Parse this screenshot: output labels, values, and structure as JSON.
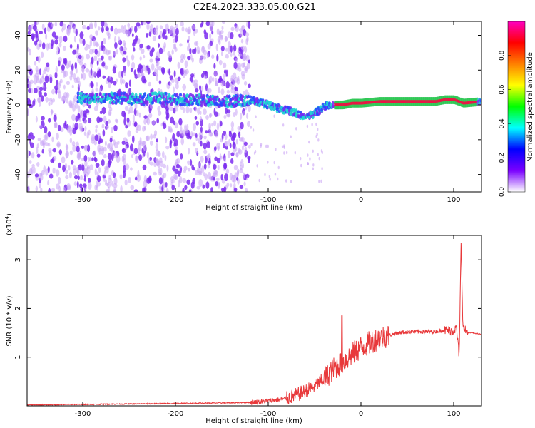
{
  "figure_title": "C2E4.2023.333.05.00.G21",
  "colors": {
    "snr_line": "#e8393b",
    "spectro_low": "#7b2cf0",
    "spectro_mid": "#22d3d3",
    "spectro_high": "#ee1144",
    "colorbar_stops": [
      "#ffffff",
      "#7a00ff",
      "#0000ff",
      "#00ffff",
      "#00ff00",
      "#ffff00",
      "#ff8000",
      "#ff0000",
      "#ff00c0"
    ]
  },
  "chart_data": [
    {
      "type": "heatmap",
      "xlabel": "Height of straight line (km)",
      "ylabel": "Frequency (Hz)",
      "xlim": [
        -360,
        130
      ],
      "ylim": [
        -50,
        48
      ],
      "xticks": [
        -300,
        -200,
        -100,
        0,
        100
      ],
      "yticks": [
        40,
        20,
        0,
        -20,
        -40
      ],
      "colorbar": {
        "label": "Normalized spectral amplitude",
        "range": [
          0.0,
          1.0
        ],
        "ticks": [
          "0.0",
          "0.2",
          "0.4",
          "0.6",
          "0.8"
        ]
      },
      "ridge": {
        "x": [
          -300,
          -280,
          -260,
          -240,
          -220,
          -200,
          -180,
          -160,
          -140,
          -120,
          -100,
          -90,
          -80,
          -70,
          -60,
          -55,
          -50,
          -45,
          -40,
          -30,
          -20,
          -10,
          0,
          20,
          40,
          60,
          80,
          90,
          100,
          110,
          130
        ],
        "freq": [
          4,
          4,
          4,
          3,
          4,
          3,
          3,
          2,
          2,
          3,
          0,
          -2,
          -3,
          -5,
          -7,
          -6,
          -5,
          -3,
          -1,
          0,
          0,
          1,
          1,
          2,
          2,
          2,
          2,
          3,
          3,
          1,
          2
        ]
      }
    },
    {
      "type": "line",
      "xlabel": "Height of straight line (km)",
      "ylabel": "SNR (10 * v/v)",
      "multiplier": "(x10",
      "multiplier_exp": "4",
      "xlim": [
        -360,
        130
      ],
      "ylim": [
        0,
        3.5
      ],
      "xticks": [
        -300,
        -200,
        -100,
        0,
        100
      ],
      "yticks": [
        1,
        2,
        3
      ],
      "series": [
        {
          "x": [
            -360,
            -300,
            -250,
            -200,
            -150,
            -120,
            -100,
            -80,
            -60,
            -50,
            -40,
            -30,
            -20,
            -10,
            0,
            10,
            20,
            30,
            40,
            50,
            60,
            70,
            80,
            90,
            100,
            103,
            106,
            108,
            110,
            115,
            120,
            130
          ],
          "y": [
            0.02,
            0.03,
            0.04,
            0.05,
            0.06,
            0.07,
            0.1,
            0.15,
            0.3,
            0.4,
            0.55,
            0.75,
            0.9,
            1.05,
            1.2,
            1.3,
            1.4,
            1.45,
            1.5,
            1.52,
            1.53,
            1.52,
            1.53,
            1.55,
            1.55,
            1.6,
            1.0,
            3.4,
            1.6,
            1.5,
            1.5,
            1.47
          ]
        }
      ]
    }
  ]
}
